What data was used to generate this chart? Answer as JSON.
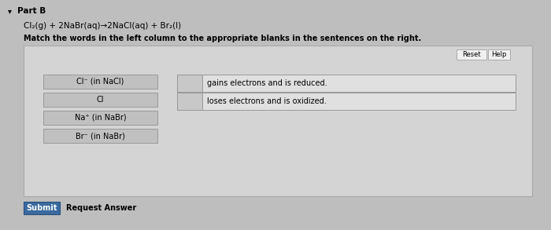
{
  "title_arrow": "▾",
  "title_text": "Part B",
  "equation": "Cl₂(g) + 2NaBr(aq)→2NaCl(aq) + Br₂(l)",
  "instruction": "Match the words in the left column to the appropriate blanks in the sentences on the right.",
  "left_items": [
    "Cl⁻ (in NaCl)",
    "Cl",
    "Na⁺ (in NaBr)",
    "Br⁻ (in NaBr)"
  ],
  "right_items": [
    "gains electrons and is reduced.",
    "loses electrons and is oxidized."
  ],
  "page_bg": "#bebebe",
  "main_box_bg": "#d4d4d4",
  "main_box_edge": "#aaaaaa",
  "left_btn_bg": "#c0c0c0",
  "left_btn_edge": "#999999",
  "right_box_bg": "#e0e0e0",
  "right_box_edge": "#999999",
  "blank_box_bg": "#c8c8c8",
  "blank_box_edge": "#999999",
  "reset_help_bg": "#f0f0f0",
  "reset_help_edge": "#aaaaaa",
  "submit_bg": "#3a6a9e",
  "submit_edge": "#2a5080",
  "submit_label": "Submit",
  "request_label": "Request Answer",
  "reset_label": "Reset",
  "help_label": "Help"
}
